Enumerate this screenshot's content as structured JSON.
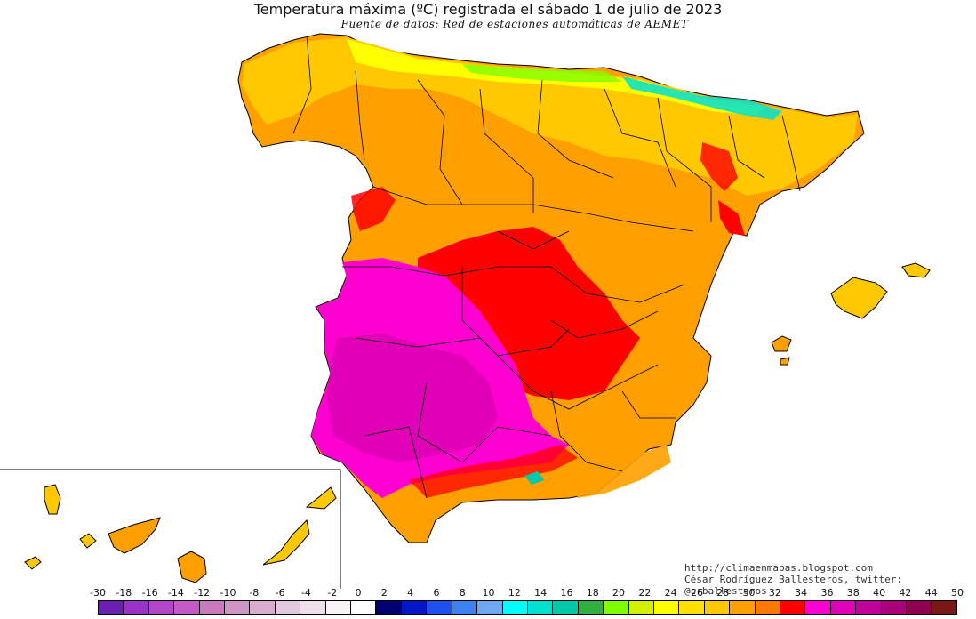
{
  "title": "Temperatura máxima (ºC) registrada el sábado 1 de julio de 2023",
  "subtitle": "Fuente de datos: Red de estaciones automáticas de AEMET",
  "credits": {
    "website": "http://climaenmapas.blogspot.com",
    "author": "César Rodríguez Ballesteros, twitter: @crballesteros"
  },
  "legend": {
    "labels": [
      "-30",
      "-18",
      "-16",
      "-14",
      "-12",
      "-10",
      "-8",
      "-6",
      "-4",
      "-2",
      "0",
      "2",
      "4",
      "6",
      "8",
      "10",
      "12",
      "14",
      "16",
      "18",
      "20",
      "22",
      "24",
      "26",
      "28",
      "30",
      "32",
      "34",
      "36",
      "38",
      "40",
      "42",
      "44",
      "50"
    ],
    "colors": [
      "#6a1fb0",
      "#9a32c8",
      "#b545c8",
      "#c35ac8",
      "#c87abf",
      "#cf95c6",
      "#d8adcf",
      "#e2c8dd",
      "#eee0ea",
      "#f6f2f6",
      "#ffffff",
      "#000070",
      "#0018c8",
      "#1e50f0",
      "#3c82f0",
      "#6ea8f0",
      "#00ffff",
      "#00e0d0",
      "#00c8a8",
      "#30b040",
      "#80ff00",
      "#d2f000",
      "#ffff00",
      "#ffe000",
      "#ffc800",
      "#ffa000",
      "#ff7800",
      "#ff0000",
      "#ff00d0",
      "#e000b8",
      "#c0009a",
      "#a8007a",
      "#900050",
      "#7a1818"
    ]
  },
  "map": {
    "region": "Península Ibérica, Baleares y Canarias",
    "hottest_region_color": "#ff00d0",
    "coolest_region_color": "#00e0d0"
  }
}
